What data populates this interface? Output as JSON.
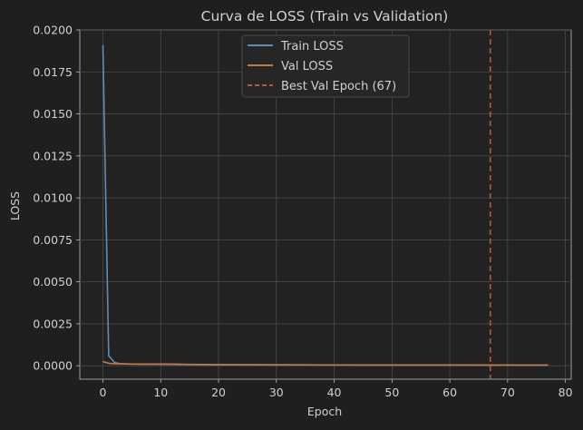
{
  "chart_data": {
    "type": "line",
    "title": "Curva de LOSS (Train vs Validation)",
    "xlabel": "Epoch",
    "ylabel": "LOSS",
    "xlim": [
      -4,
      81
    ],
    "ylim": [
      -0.0008,
      0.02
    ],
    "xticks": [
      0,
      10,
      20,
      30,
      40,
      50,
      60,
      70,
      80
    ],
    "xtick_labels": [
      "0",
      "10",
      "20",
      "30",
      "40",
      "50",
      "60",
      "70",
      "80"
    ],
    "yticks": [
      0.0,
      0.0025,
      0.005,
      0.0075,
      0.01,
      0.0125,
      0.015,
      0.0175,
      0.02
    ],
    "ytick_labels": [
      "0.0000",
      "0.0025",
      "0.0050",
      "0.0075",
      "0.0100",
      "0.0125",
      "0.0150",
      "0.0175",
      "0.0200"
    ],
    "grid": true,
    "legend_position": "top-center",
    "series": [
      {
        "name": "Train LOSS",
        "color": "#5b8db8",
        "points": [
          [
            0,
            0.0191
          ],
          [
            1,
            0.0006
          ],
          [
            2,
            0.0002
          ],
          [
            3,
            0.00012
          ],
          [
            5,
            0.0001
          ],
          [
            10,
            9e-05
          ],
          [
            15,
            7e-05
          ],
          [
            20,
            6e-05
          ],
          [
            30,
            5e-05
          ],
          [
            40,
            5e-05
          ],
          [
            50,
            4e-05
          ],
          [
            60,
            4e-05
          ],
          [
            67,
            4e-05
          ],
          [
            70,
            4e-05
          ],
          [
            77,
            4e-05
          ]
        ]
      },
      {
        "name": "Val LOSS",
        "color": "#c07a48",
        "points": [
          [
            0,
            0.00025
          ],
          [
            1,
            0.00015
          ],
          [
            2,
            0.00012
          ],
          [
            5,
            0.0001
          ],
          [
            10,
            0.0001
          ],
          [
            12,
            0.0001
          ],
          [
            15,
            8e-05
          ],
          [
            20,
            7e-05
          ],
          [
            30,
            6e-05
          ],
          [
            40,
            5e-05
          ],
          [
            50,
            5e-05
          ],
          [
            60,
            5e-05
          ],
          [
            67,
            4e-05
          ],
          [
            70,
            4e-05
          ],
          [
            77,
            4e-05
          ]
        ]
      }
    ],
    "vline": {
      "name": "Best Val Epoch (67)",
      "x": 67,
      "color": "#c0504d",
      "style": "dashed"
    }
  }
}
